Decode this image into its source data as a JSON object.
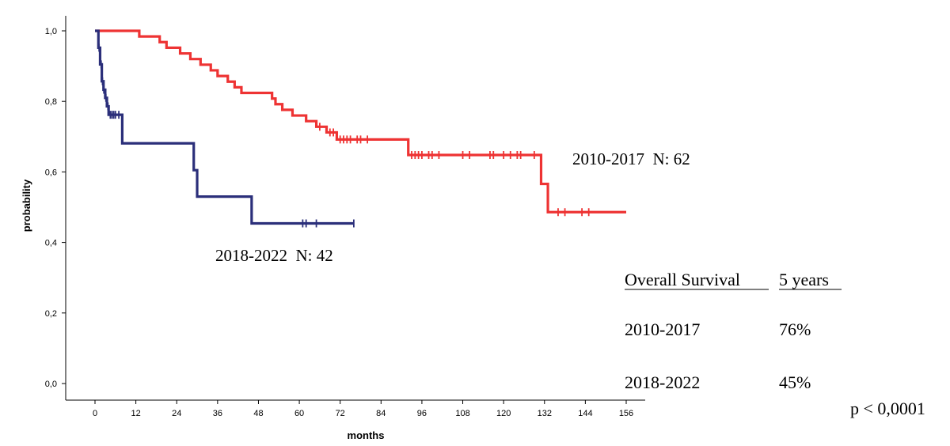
{
  "chart_data": {
    "type": "line",
    "title": "",
    "xlabel": "months",
    "ylabel": "probability",
    "xlim": [
      -6,
      162
    ],
    "ylim": [
      0,
      1
    ],
    "x_ticks": [
      0,
      12,
      24,
      36,
      48,
      60,
      72,
      84,
      96,
      108,
      120,
      132,
      144,
      156
    ],
    "y_ticks": [
      0.0,
      0.2,
      0.4,
      0.6,
      0.8,
      1.0
    ],
    "x_tick_labels": [
      "0",
      "12",
      "24",
      "36",
      "48",
      "60",
      "72",
      "84",
      "96",
      "108",
      "120",
      "132",
      "144",
      "156"
    ],
    "y_tick_labels": [
      "0,0",
      "0,2",
      "0,4",
      "0,6",
      "0,8",
      "1,0"
    ],
    "grid": false,
    "series": [
      {
        "name": "2010-2017  N: 62",
        "color": "#ee3333",
        "steps": [
          [
            0,
            1.0
          ],
          [
            13,
            0.984
          ],
          [
            16,
            0.984
          ],
          [
            19,
            0.968
          ],
          [
            21,
            0.952
          ],
          [
            25,
            0.936
          ],
          [
            28,
            0.92
          ],
          [
            31,
            0.904
          ],
          [
            34,
            0.888
          ],
          [
            36,
            0.872
          ],
          [
            39,
            0.856
          ],
          [
            41,
            0.84
          ],
          [
            43,
            0.824
          ],
          [
            52,
            0.808
          ],
          [
            53,
            0.792
          ],
          [
            55,
            0.776
          ],
          [
            58,
            0.76
          ],
          [
            62,
            0.744
          ],
          [
            65,
            0.728
          ],
          [
            68,
            0.712
          ],
          [
            71,
            0.692
          ],
          [
            92,
            0.648
          ],
          [
            101,
            0.648
          ],
          [
            111,
            0.648
          ],
          [
            118,
            0.648
          ],
          [
            131,
            0.648
          ],
          [
            131,
            0.566
          ],
          [
            133,
            0.566
          ],
          [
            133,
            0.486
          ],
          [
            155,
            0.486
          ]
        ],
        "end": 156,
        "censored": [
          66,
          69,
          70,
          72,
          73,
          74,
          75,
          77,
          78,
          80,
          93,
          94,
          95,
          96,
          98,
          99,
          101,
          108,
          110,
          116,
          117,
          120,
          122,
          124,
          125,
          129,
          136,
          138,
          143,
          145
        ]
      },
      {
        "name": "2018-2022  N: 42",
        "color": "#2b2f7a",
        "steps": [
          [
            0,
            1.0
          ],
          [
            1,
            0.952
          ],
          [
            1.5,
            0.905
          ],
          [
            2,
            0.857
          ],
          [
            2.5,
            0.833
          ],
          [
            3,
            0.81
          ],
          [
            3.5,
            0.786
          ],
          [
            4,
            0.762
          ],
          [
            8,
            0.681
          ],
          [
            29,
            0.605
          ],
          [
            30,
            0.53
          ],
          [
            46,
            0.454
          ]
        ],
        "end": 76,
        "censored": [
          1.2,
          1.8,
          2.2,
          2.6,
          3.2,
          3.8,
          4.5,
          5.0,
          5.5,
          6.0,
          7.0,
          61,
          62,
          65,
          76
        ]
      }
    ],
    "annotations": {
      "label_a": "2010-2017  N: 62",
      "label_b": "2018-2022  N: 42",
      "table_header_left": "Overall Survival",
      "table_header_right": "5 years",
      "row1_label": "2010-2017",
      "row1_value": "76%",
      "row2_label": "2018-2022",
      "row2_value": "45%",
      "p_value": "p < 0,0001"
    }
  }
}
